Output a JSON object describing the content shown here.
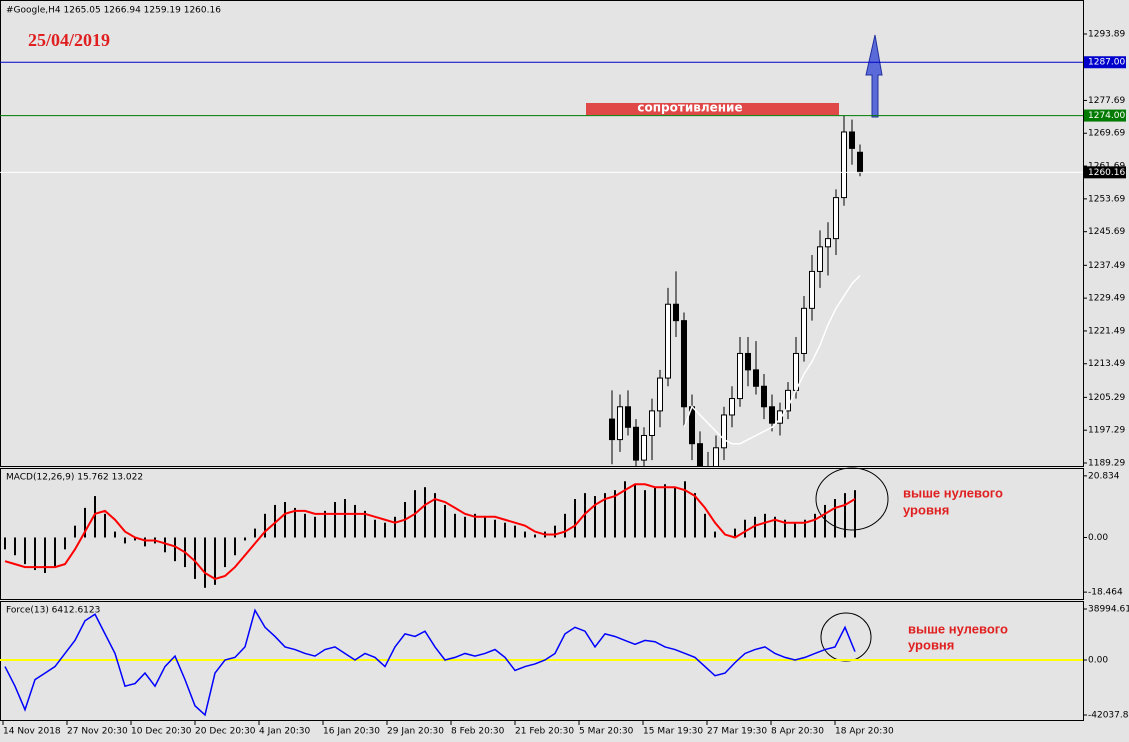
{
  "chart_data": [
    {
      "type": "candlestick",
      "title": "#Google,H4  1265.05 1266.94 1259.19 1260.16",
      "open": [
        1200,
        1195,
        1203,
        1198,
        1190,
        1196,
        1202,
        1210,
        1228,
        1224,
        1203,
        1194,
        1188,
        1187,
        1193,
        1201,
        1205,
        1216,
        1212,
        1208,
        1203,
        1199,
        1202,
        1207,
        1216,
        1227,
        1236,
        1242,
        1244,
        1254,
        1270,
        1265.05
      ],
      "high": [
        1207,
        1206,
        1207,
        1200,
        1198,
        1205,
        1212,
        1232,
        1236,
        1226,
        1206,
        1197,
        1192,
        1196,
        1203,
        1208,
        1220,
        1220,
        1219,
        1211,
        1206,
        1204,
        1209,
        1220,
        1230,
        1240,
        1246,
        1248,
        1256,
        1274,
        1273,
        1266.94
      ],
      "low": [
        1189,
        1192,
        1196,
        1186,
        1185,
        1190,
        1198,
        1208,
        1220,
        1198,
        1190,
        1185,
        1183,
        1186,
        1190,
        1198,
        1203,
        1208,
        1206,
        1200,
        1197,
        1196,
        1200,
        1205,
        1214,
        1224,
        1232,
        1235,
        1240,
        1252,
        1262,
        1259.19
      ],
      "close": [
        1195,
        1203,
        1198,
        1190,
        1196,
        1202,
        1210,
        1228,
        1224,
        1203,
        1194,
        1188,
        1187,
        1193,
        1201,
        1205,
        1216,
        1212,
        1208,
        1203,
        1199,
        1202,
        1207,
        1216,
        1227,
        1236,
        1242,
        1244,
        1254,
        1270,
        1266,
        1260.16
      ],
      "ma_values": [
        null,
        null,
        null,
        null,
        null,
        null,
        null,
        null,
        null,
        1198,
        1203,
        1201,
        1199,
        1197,
        1195,
        1194,
        1194,
        1195,
        1196,
        1197,
        1198,
        1200,
        1203,
        1207,
        1211,
        1214,
        1218,
        1223,
        1227,
        1230,
        1233,
        1235
      ],
      "ma_color": "#ffffff",
      "ylim": [
        1188.56,
        1298.52
      ],
      "yticks": [
        1189.29,
        1197.29,
        1205.29,
        1213.49,
        1221.49,
        1229.49,
        1237.49,
        1245.69,
        1253.69,
        1261.69,
        1269.69,
        1277.69,
        1293.89
      ],
      "hlines": [
        {
          "value": 1287.0,
          "label": "1287.00",
          "color": "#0000cc"
        },
        {
          "value": 1274.0,
          "label": "1274.00",
          "color": "#007a00"
        },
        {
          "value": 1260.16,
          "label": "1260.16",
          "color": "#ffffff"
        }
      ],
      "date_label": "25/04/2019",
      "resistance_label": "сопротивление"
    },
    {
      "type": "macd",
      "title": "MACD(12,26,9) 15.762 13.022",
      "histogram": [
        -4,
        -6,
        -9,
        -11,
        -12,
        -10,
        -4,
        4,
        10,
        14,
        8,
        2,
        -2,
        -1,
        -3,
        -2,
        -5,
        -8,
        -10,
        -14,
        -17,
        -16,
        -10,
        -6,
        -1,
        3,
        8,
        11,
        12,
        10,
        8,
        7,
        9,
        12,
        13,
        11,
        9,
        6,
        5,
        7,
        12,
        16,
        17,
        15,
        11,
        8,
        7,
        8,
        7,
        6,
        5,
        4,
        2,
        1,
        2,
        4,
        8,
        13,
        15,
        14,
        15,
        16,
        19,
        18,
        16,
        17,
        18,
        17,
        19,
        15,
        8,
        2,
        0,
        3,
        6,
        7,
        8,
        7,
        6,
        5,
        6,
        8,
        11,
        13,
        15,
        16
      ],
      "signal": [
        -8,
        -9,
        -10,
        -10,
        -10,
        -10,
        -9,
        -4,
        2,
        8,
        9,
        6,
        2,
        0,
        -1,
        -1,
        -2,
        -3,
        -5,
        -8,
        -12,
        -14,
        -13,
        -10,
        -6,
        -2,
        2,
        5,
        8,
        9,
        9,
        8,
        8,
        8,
        8,
        8,
        8,
        7,
        6,
        5,
        6,
        8,
        11,
        13,
        12,
        10,
        8,
        7,
        7,
        7,
        6,
        5,
        4,
        2,
        1,
        1,
        2,
        4,
        8,
        11,
        13,
        14,
        16,
        18,
        18,
        17,
        17,
        17,
        16,
        14,
        10,
        5,
        1,
        0,
        2,
        4,
        5,
        6,
        5,
        5,
        5,
        6,
        8,
        10,
        11,
        13
      ],
      "signal_color": "#ff0000",
      "ylim": [
        -20.45,
        23.15
      ],
      "yticks": [
        -18.464,
        {
          "value": 0,
          "label": "0.00"
        },
        20.834
      ],
      "annotation": [
        "выше нулевого",
        "уровня"
      ]
    },
    {
      "type": "line",
      "title": "Force(13) 6412.6123",
      "values": [
        -5000,
        -20000,
        -38000,
        -15000,
        -10000,
        -5000,
        5000,
        15000,
        30000,
        35000,
        20000,
        5000,
        -20000,
        -18000,
        -10000,
        -20000,
        -5000,
        3000,
        -15000,
        -35000,
        -42000,
        -10000,
        0,
        2000,
        10000,
        38000,
        25000,
        18000,
        10000,
        8000,
        5000,
        3000,
        8000,
        10000,
        5000,
        0,
        5000,
        2000,
        -5000,
        10000,
        20000,
        18000,
        22000,
        10000,
        0,
        2000,
        5000,
        3000,
        5000,
        8000,
        2000,
        -8000,
        -5000,
        -3000,
        0,
        5000,
        20000,
        25000,
        22000,
        10000,
        20000,
        18000,
        15000,
        12000,
        15000,
        14000,
        10000,
        8000,
        5000,
        2000,
        -5000,
        -12000,
        -10000,
        -2000,
        5000,
        8000,
        10000,
        5000,
        2000,
        0,
        2000,
        5000,
        8000,
        10000,
        25000,
        6412.6123
      ],
      "color": "#0000ff",
      "zero_line_color": "#ffff00",
      "ylim": [
        -47400,
        44350
      ],
      "yticks": [
        -42037.846,
        {
          "value": 0,
          "label": "0.00"
        },
        38994.613
      ],
      "annotation": [
        "выше нулевого",
        "уровня"
      ]
    }
  ],
  "time_axis": {
    "labels": [
      "14 Nov 2018",
      "27 Nov 20:30",
      "10 Dec 20:30",
      "20 Dec 20:30",
      "4 Jan 20:30",
      "16 Jan 20:30",
      "29 Jan 20:30",
      "8 Feb 20:30",
      "21 Feb 20:30",
      "5 Mar 20:30",
      "15 Mar 19:30",
      "27 Mar 19:30",
      "8 Apr 20:30",
      "18 Apr 20:30"
    ]
  }
}
